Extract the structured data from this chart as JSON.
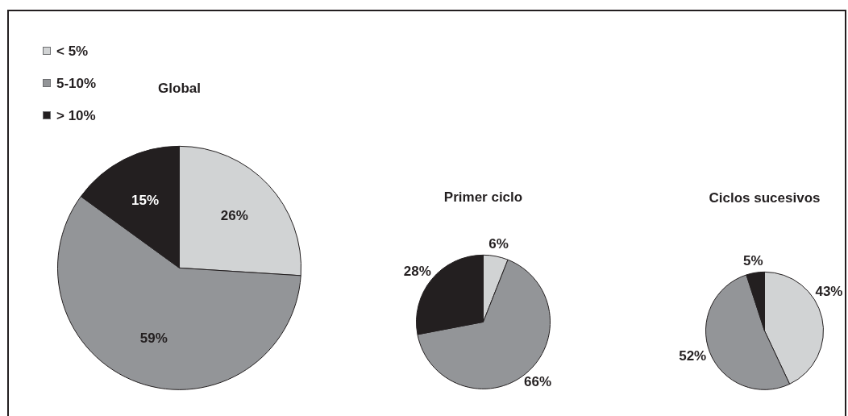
{
  "chart_data": [
    {
      "type": "pie",
      "title": "Global",
      "categories": [
        "< 5%",
        "5-10%",
        "> 10%"
      ],
      "values": [
        26,
        59,
        15
      ],
      "colors": [
        "#d1d3d4",
        "#939598",
        "#231f20"
      ],
      "value_labels": [
        "26%",
        "59%",
        "15%"
      ],
      "legend": "top left"
    },
    {
      "type": "pie",
      "title": "Primer ciclo",
      "categories": [
        null,
        null,
        null
      ],
      "values": [
        6,
        66,
        28
      ],
      "colors": [
        "#d1d3d4",
        "#939598",
        "#231f20"
      ],
      "value_labels": [
        "6%",
        "66%",
        "28%"
      ]
    },
    {
      "type": "pie",
      "title": "Ciclos sucesivos",
      "categories": [
        null,
        null,
        null
      ],
      "values": [
        43,
        52,
        5
      ],
      "colors": [
        "#d1d3d4",
        "#939598",
        "#231f20"
      ],
      "value_labels": [
        "43%",
        "52%",
        "5%"
      ]
    }
  ]
}
